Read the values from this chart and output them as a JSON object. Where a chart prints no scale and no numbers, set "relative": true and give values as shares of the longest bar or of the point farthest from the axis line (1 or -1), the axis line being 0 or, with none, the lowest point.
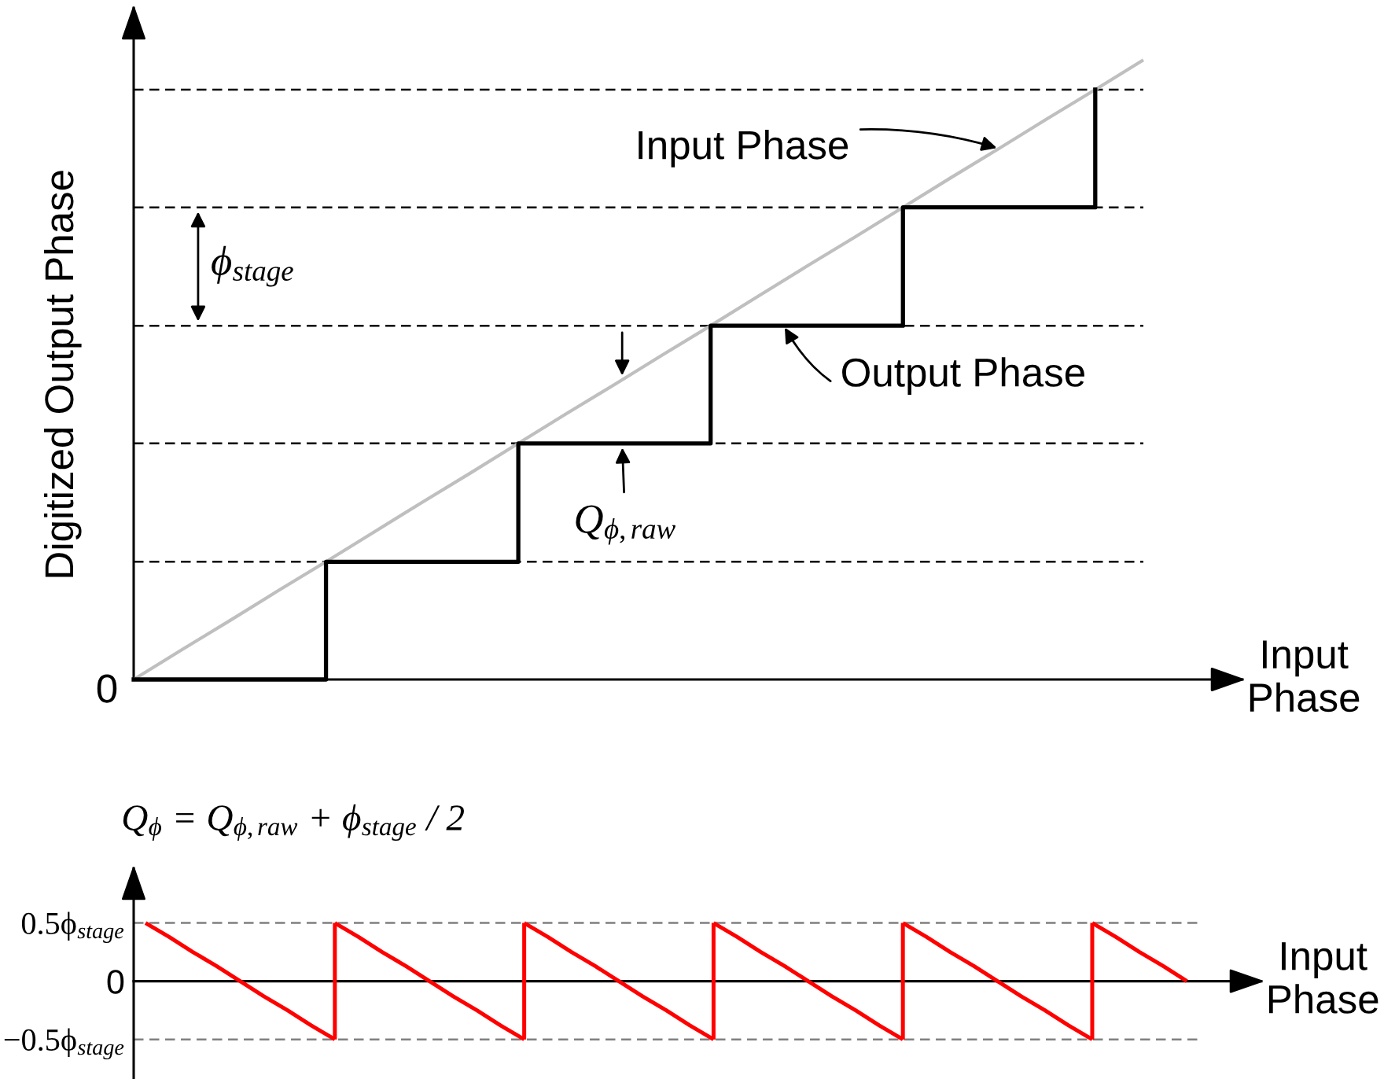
{
  "chart_data": [
    {
      "type": "line",
      "relative": true,
      "ylabel": "Digitized Output Phase",
      "xlabel": "Input\nPhase",
      "tick_labels": false,
      "categories": [
        null,
        null,
        null,
        null,
        null,
        null,
        null,
        null,
        null,
        null,
        null,
        null,
        null,
        null,
        null,
        null,
        null,
        null,
        null,
        null,
        null,
        null
      ],
      "series": [
        {
          "name": "Input Phase",
          "type": "line",
          "color": "#bfbfbf",
          "values": [
            0,
            0.048,
            0.095,
            0.143,
            0.19,
            0.238,
            0.286,
            0.333,
            0.381,
            0.429,
            0.476,
            0.524,
            0.571,
            0.619,
            0.667,
            0.714,
            0.762,
            0.81,
            0.857,
            0.905,
            0.952,
            1
          ]
        },
        {
          "name": "Output Phase",
          "type": "step",
          "color": "#000000",
          "values": [
            0,
            0,
            0,
            0,
            0.19,
            0.19,
            0.19,
            0.19,
            0.381,
            0.381,
            0.381,
            0.381,
            0.571,
            0.571,
            0.571,
            0.571,
            0.762,
            0.762,
            0.762,
            0.762,
            0.952,
            null
          ]
        }
      ],
      "ref_lines": [
        {
          "axis": "y",
          "value": 0.19,
          "color": "#000000",
          "line_style": "dashed"
        },
        {
          "axis": "y",
          "value": 0.381,
          "color": "#000000",
          "line_style": "dashed"
        },
        {
          "axis": "y",
          "value": 0.571,
          "color": "#000000",
          "line_style": "dashed"
        },
        {
          "axis": "y",
          "value": 0.762,
          "color": "#000000",
          "line_style": "dashed"
        },
        {
          "axis": "y",
          "value": 0.952,
          "color": "#000000",
          "line_style": "dashed"
        }
      ],
      "annotations": [
        "0",
        "ϕ$_{stage}$",
        {
          "text": "Q$_{ϕ,raw}$",
          "y": 0.381
        }
      ]
    },
    {
      "type": "line",
      "ylabel": "Q$_{ϕ}$ = Q$_{ϕ,raw}$ + ϕ$_{stage}$ / 2",
      "xlabel": "Input\nPhase",
      "ylim": [
        -0.84,
        0.97
      ],
      "tick_labels": "y",
      "yticks": [
        {
          "value": 0.5,
          "label": "0.5ϕ$_{stage}$"
        },
        0,
        {
          "value": -0.5,
          "label": "−0.5ϕ$_{stage}$"
        }
      ],
      "categories": [
        null,
        null,
        null,
        null,
        null,
        null,
        null,
        null,
        null,
        null,
        null,
        null,
        null,
        null,
        null,
        null,
        null,
        null,
        null,
        null,
        null,
        null,
        null,
        null,
        null,
        null,
        null,
        null,
        null,
        null,
        null,
        null,
        null,
        null,
        null,
        null,
        null,
        null,
        null,
        null,
        null,
        null,
        null,
        null,
        null
      ],
      "series": [
        {
          "color": "#ff0000",
          "values": [
            0.5,
            0.38,
            0.25,
            0.13,
            0,
            -0.13,
            -0.25,
            -0.38,
            -0.5,
            null,
            null,
            null,
            null,
            null,
            null,
            null,
            null,
            null,
            null,
            null,
            null,
            null,
            null,
            null,
            null,
            null,
            null,
            null,
            null,
            null,
            null,
            null,
            null,
            null,
            null,
            null,
            null,
            null,
            null,
            null,
            null,
            null,
            null,
            null,
            null
          ],
          "errors": [
            null,
            null,
            null,
            null,
            null,
            null,
            null,
            null,
            [
              -0.5,
              0.5
            ],
            null,
            null,
            null,
            null,
            null,
            null,
            null,
            null,
            null,
            null,
            null,
            null,
            null,
            null,
            null,
            null,
            null,
            null,
            null,
            null,
            null,
            null,
            null,
            null,
            null,
            null,
            null,
            null,
            null,
            null,
            null,
            null,
            null,
            null,
            null,
            null
          ]
        },
        {
          "color": "#ff0000",
          "values": [
            null,
            null,
            null,
            null,
            null,
            null,
            null,
            null,
            0.5,
            0.38,
            0.25,
            0.13,
            0,
            -0.13,
            -0.25,
            -0.38,
            -0.5,
            null,
            null,
            null,
            null,
            null,
            null,
            null,
            null,
            null,
            null,
            null,
            null,
            null,
            null,
            null,
            null,
            null,
            null,
            null,
            null,
            null,
            null,
            null,
            null,
            null,
            null,
            null,
            null
          ],
          "errors": [
            null,
            null,
            null,
            null,
            null,
            null,
            null,
            null,
            null,
            null,
            null,
            null,
            null,
            null,
            null,
            null,
            [
              -0.5,
              0.5
            ],
            null,
            null,
            null,
            null,
            null,
            null,
            null,
            null,
            null,
            null,
            null,
            null,
            null,
            null,
            null,
            null,
            null,
            null,
            null,
            null,
            null,
            null,
            null,
            null,
            null,
            null,
            null,
            null
          ]
        },
        {
          "color": "#ff0000",
          "values": [
            null,
            null,
            null,
            null,
            null,
            null,
            null,
            null,
            null,
            null,
            null,
            null,
            null,
            null,
            null,
            null,
            0.5,
            0.38,
            0.25,
            0.13,
            0,
            -0.13,
            -0.25,
            -0.38,
            -0.5,
            null,
            null,
            null,
            null,
            null,
            null,
            null,
            null,
            null,
            null,
            null,
            null,
            null,
            null,
            null,
            null,
            null,
            null,
            null,
            null
          ],
          "errors": [
            null,
            null,
            null,
            null,
            null,
            null,
            null,
            null,
            null,
            null,
            null,
            null,
            null,
            null,
            null,
            null,
            null,
            null,
            null,
            null,
            null,
            null,
            null,
            null,
            [
              -0.5,
              0.5
            ],
            null,
            null,
            null,
            null,
            null,
            null,
            null,
            null,
            null,
            null,
            null,
            null,
            null,
            null,
            null,
            null,
            null,
            null,
            null,
            null
          ]
        },
        {
          "color": "#ff0000",
          "values": [
            null,
            null,
            null,
            null,
            null,
            null,
            null,
            null,
            null,
            null,
            null,
            null,
            null,
            null,
            null,
            null,
            null,
            null,
            null,
            null,
            null,
            null,
            null,
            null,
            0.5,
            0.38,
            0.25,
            0.13,
            0,
            -0.13,
            -0.25,
            -0.38,
            -0.5,
            null,
            null,
            null,
            null,
            null,
            null,
            null,
            null,
            null,
            null,
            null,
            null
          ],
          "errors": [
            null,
            null,
            null,
            null,
            null,
            null,
            null,
            null,
            null,
            null,
            null,
            null,
            null,
            null,
            null,
            null,
            null,
            null,
            null,
            null,
            null,
            null,
            null,
            null,
            null,
            null,
            null,
            null,
            null,
            null,
            null,
            null,
            [
              -0.5,
              0.5
            ],
            null,
            null,
            null,
            null,
            null,
            null,
            null,
            null,
            null,
            null,
            null,
            null
          ]
        },
        {
          "color": "#ff0000",
          "values": [
            null,
            null,
            null,
            null,
            null,
            null,
            null,
            null,
            null,
            null,
            null,
            null,
            null,
            null,
            null,
            null,
            null,
            null,
            null,
            null,
            null,
            null,
            null,
            null,
            null,
            null,
            null,
            null,
            null,
            null,
            null,
            null,
            0.5,
            0.38,
            0.25,
            0.13,
            0,
            -0.13,
            -0.25,
            -0.38,
            -0.5,
            null,
            null,
            null,
            null
          ],
          "errors": [
            null,
            null,
            null,
            null,
            null,
            null,
            null,
            null,
            null,
            null,
            null,
            null,
            null,
            null,
            null,
            null,
            null,
            null,
            null,
            null,
            null,
            null,
            null,
            null,
            null,
            null,
            null,
            null,
            null,
            null,
            null,
            null,
            null,
            null,
            null,
            null,
            null,
            null,
            null,
            null,
            [
              -0.5,
              0.5
            ],
            null,
            null,
            null,
            null
          ]
        },
        {
          "color": "#ff0000",
          "values": [
            null,
            null,
            null,
            null,
            null,
            null,
            null,
            null,
            null,
            null,
            null,
            null,
            null,
            null,
            null,
            null,
            null,
            null,
            null,
            null,
            null,
            null,
            null,
            null,
            null,
            null,
            null,
            null,
            null,
            null,
            null,
            null,
            null,
            null,
            null,
            null,
            null,
            null,
            null,
            null,
            0.5,
            0.38,
            0.25,
            0.13,
            0
          ]
        }
      ],
      "ref_lines": [
        {
          "axis": "y",
          "value": 0.5,
          "color": "#808080",
          "line_style": "dashed"
        },
        {
          "axis": "y",
          "value": -0.5,
          "color": "#808080",
          "line_style": "dashed"
        }
      ]
    }
  ]
}
